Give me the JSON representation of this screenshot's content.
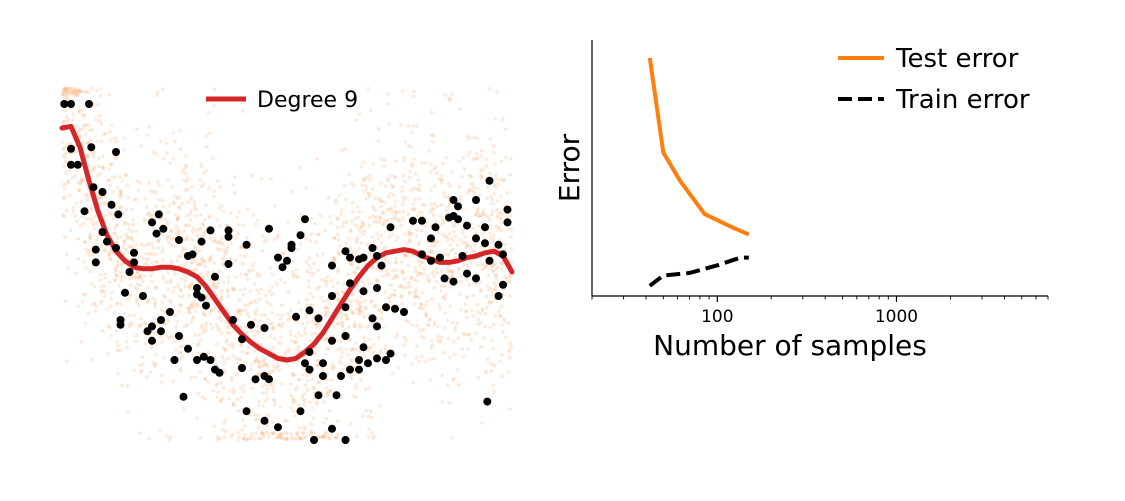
{
  "chart_data": [
    {
      "type": "scatter",
      "legend": {
        "entries": [
          {
            "label": "Degree 9",
            "color": "#d62728"
          }
        ],
        "placement": "top-center"
      },
      "background_cloud_color": "#f5a05a",
      "sample_points_color": "#000000",
      "xlim": [
        0,
        1
      ],
      "ylim": [
        -1.1,
        1.1
      ],
      "samples": [
        [
          0.005,
          1.0
        ],
        [
          0.02,
          1.0
        ],
        [
          0.06,
          1.0
        ],
        [
          0.02,
          0.72
        ],
        [
          0.02,
          0.62
        ],
        [
          0.035,
          0.62
        ],
        [
          0.065,
          0.73
        ],
        [
          0.12,
          0.7
        ],
        [
          0.07,
          0.48
        ],
        [
          0.09,
          0.45
        ],
        [
          0.11,
          0.37
        ],
        [
          0.05,
          0.33
        ],
        [
          0.125,
          0.31
        ],
        [
          0.09,
          0.2
        ],
        [
          0.1,
          0.14
        ],
        [
          0.12,
          0.1
        ],
        [
          0.075,
          0.09
        ],
        [
          0.16,
          0.07
        ],
        [
          0.075,
          0.01
        ],
        [
          0.16,
          0.01
        ],
        [
          0.215,
          0.31
        ],
        [
          0.2,
          0.26
        ],
        [
          0.225,
          0.22
        ],
        [
          0.21,
          0.19
        ],
        [
          0.26,
          0.15
        ],
        [
          0.28,
          0.05
        ],
        [
          0.29,
          0.06
        ],
        [
          0.31,
          0.14
        ],
        [
          0.33,
          0.21
        ],
        [
          0.37,
          0.21
        ],
        [
          0.37,
          0.17
        ],
        [
          0.41,
          0.12
        ],
        [
          0.37,
          0.0
        ],
        [
          0.34,
          -0.08
        ],
        [
          0.3,
          -0.15
        ],
        [
          0.3,
          -0.19
        ],
        [
          0.31,
          -0.21
        ],
        [
          0.32,
          -0.26
        ],
        [
          0.24,
          -0.3
        ],
        [
          0.22,
          -0.35
        ],
        [
          0.2,
          -0.39
        ],
        [
          0.19,
          -0.42
        ],
        [
          0.22,
          -0.42
        ],
        [
          0.26,
          -0.45
        ],
        [
          0.28,
          -0.53
        ],
        [
          0.25,
          -0.6
        ],
        [
          0.315,
          -0.58
        ],
        [
          0.33,
          -0.6
        ],
        [
          0.34,
          -0.66
        ],
        [
          0.3,
          -0.6
        ],
        [
          0.35,
          -0.68
        ],
        [
          0.4,
          -0.65
        ],
        [
          0.45,
          -0.7
        ],
        [
          0.46,
          -0.72
        ],
        [
          0.27,
          -0.83
        ],
        [
          0.41,
          -0.92
        ],
        [
          0.45,
          -0.98
        ],
        [
          0.48,
          -1.02
        ],
        [
          0.53,
          -0.92
        ],
        [
          0.57,
          -0.82
        ],
        [
          0.61,
          -0.82
        ],
        [
          0.6,
          -1.03
        ],
        [
          0.56,
          -1.1
        ],
        [
          0.63,
          -1.1
        ],
        [
          0.54,
          -0.62
        ],
        [
          0.55,
          -0.66
        ],
        [
          0.58,
          -0.62
        ],
        [
          0.58,
          -0.7
        ],
        [
          0.62,
          -0.7
        ],
        [
          0.64,
          -0.66
        ],
        [
          0.66,
          -0.66
        ],
        [
          0.68,
          -0.62
        ],
        [
          0.7,
          -0.59
        ],
        [
          0.72,
          -0.6
        ],
        [
          0.73,
          -0.56
        ],
        [
          0.66,
          -0.6
        ],
        [
          0.6,
          -0.48
        ],
        [
          0.63,
          -0.45
        ],
        [
          0.67,
          -0.52
        ],
        [
          0.55,
          -0.55
        ],
        [
          0.57,
          -0.34
        ],
        [
          0.52,
          -0.33
        ],
        [
          0.55,
          -0.29
        ],
        [
          0.6,
          -0.2
        ],
        [
          0.64,
          -0.12
        ],
        [
          0.6,
          -0.01
        ],
        [
          0.63,
          0.08
        ],
        [
          0.64,
          0.04
        ],
        [
          0.66,
          0.03
        ],
        [
          0.67,
          0.04
        ],
        [
          0.69,
          0.1
        ],
        [
          0.7,
          0.05
        ],
        [
          0.71,
          -0.01
        ],
        [
          0.67,
          -0.17
        ],
        [
          0.7,
          -0.15
        ],
        [
          0.72,
          -0.27
        ],
        [
          0.74,
          -0.28
        ],
        [
          0.76,
          -0.3
        ],
        [
          0.63,
          -0.27
        ],
        [
          0.69,
          -0.34
        ],
        [
          0.7,
          -0.39
        ],
        [
          0.73,
          0.23
        ],
        [
          0.78,
          0.27
        ],
        [
          0.8,
          0.27
        ],
        [
          0.82,
          0.16
        ],
        [
          0.83,
          0.23
        ],
        [
          0.86,
          0.29
        ],
        [
          0.87,
          0.3
        ],
        [
          0.88,
          0.36
        ],
        [
          0.87,
          0.4
        ],
        [
          0.9,
          0.24
        ],
        [
          0.92,
          0.16
        ],
        [
          0.8,
          0.06
        ],
        [
          0.82,
          0.02
        ],
        [
          0.84,
          0.04
        ],
        [
          0.85,
          -0.09
        ],
        [
          0.87,
          -0.11
        ],
        [
          0.89,
          0.05
        ],
        [
          0.9,
          -0.06
        ],
        [
          0.92,
          -0.09
        ],
        [
          0.94,
          0.23
        ],
        [
          0.94,
          0.13
        ],
        [
          0.95,
          0.02
        ],
        [
          0.97,
          0.12
        ],
        [
          0.98,
          0.06
        ],
        [
          0.99,
          0.26
        ],
        [
          0.99,
          0.34
        ],
        [
          0.98,
          -0.13
        ],
        [
          0.97,
          -0.2
        ],
        [
          0.95,
          0.52
        ],
        [
          0.92,
          0.4
        ],
        [
          0.88,
          0.28
        ],
        [
          0.54,
          0.28
        ],
        [
          0.53,
          0.18
        ],
        [
          0.51,
          0.12
        ],
        [
          0.51,
          0.1
        ],
        [
          0.5,
          0.02
        ],
        [
          0.43,
          -0.72
        ],
        [
          0.46,
          0.22
        ],
        [
          0.48,
          0.04
        ],
        [
          0.49,
          -0.02
        ],
        [
          0.45,
          -0.4
        ],
        [
          0.42,
          -0.38
        ],
        [
          0.38,
          -0.35
        ],
        [
          0.4,
          -0.47
        ],
        [
          0.2,
          -0.48
        ],
        [
          0.18,
          -0.2
        ],
        [
          0.15,
          -0.05
        ],
        [
          0.13,
          -0.35
        ],
        [
          0.13,
          -0.38
        ],
        [
          0.14,
          -0.18
        ],
        [
          0.945,
          -0.86
        ]
      ],
      "curve": {
        "series_name": "Degree 9",
        "x": [
          0.0,
          0.02,
          0.04,
          0.06,
          0.08,
          0.1,
          0.12,
          0.14,
          0.16,
          0.18,
          0.2,
          0.22,
          0.24,
          0.26,
          0.28,
          0.3,
          0.32,
          0.34,
          0.36,
          0.38,
          0.4,
          0.42,
          0.44,
          0.46,
          0.48,
          0.5,
          0.52,
          0.54,
          0.56,
          0.58,
          0.6,
          0.62,
          0.64,
          0.66,
          0.68,
          0.7,
          0.72,
          0.74,
          0.76,
          0.78,
          0.8,
          0.82,
          0.84,
          0.86,
          0.88,
          0.9,
          0.92,
          0.94,
          0.96,
          0.98,
          1.0
        ],
        "y": [
          0.85,
          0.86,
          0.73,
          0.52,
          0.33,
          0.18,
          0.08,
          0.02,
          -0.02,
          -0.03,
          -0.03,
          -0.02,
          -0.02,
          -0.03,
          -0.05,
          -0.08,
          -0.14,
          -0.22,
          -0.3,
          -0.38,
          -0.44,
          -0.49,
          -0.53,
          -0.56,
          -0.59,
          -0.6,
          -0.59,
          -0.55,
          -0.5,
          -0.43,
          -0.34,
          -0.25,
          -0.16,
          -0.08,
          -0.01,
          0.04,
          0.07,
          0.08,
          0.09,
          0.08,
          0.05,
          0.03,
          0.01,
          0.01,
          0.02,
          0.04,
          0.05,
          0.07,
          0.08,
          0.05,
          -0.05
        ]
      }
    },
    {
      "type": "line",
      "xscale": "log",
      "xlim": [
        20,
        7000
      ],
      "ylim": [
        0,
        1
      ],
      "xlabel": "Number of samples",
      "ylabel": "Error",
      "x_ticks": [
        {
          "value": 100,
          "label": "100"
        },
        {
          "value": 1000,
          "label": "1000"
        }
      ],
      "legend": {
        "placement": "top-right"
      },
      "series": [
        {
          "name": "Test error",
          "color": "#ff7f0e",
          "style": "solid",
          "x": [
            42,
            50,
            62,
            85,
            120,
            150
          ],
          "y": [
            0.93,
            0.56,
            0.45,
            0.32,
            0.27,
            0.24
          ]
        },
        {
          "name": "Train error",
          "color": "#000000",
          "style": "dashed",
          "x": [
            42,
            50,
            70,
            100,
            135,
            150
          ],
          "y": [
            0.04,
            0.08,
            0.09,
            0.12,
            0.15,
            0.15
          ]
        }
      ]
    }
  ]
}
